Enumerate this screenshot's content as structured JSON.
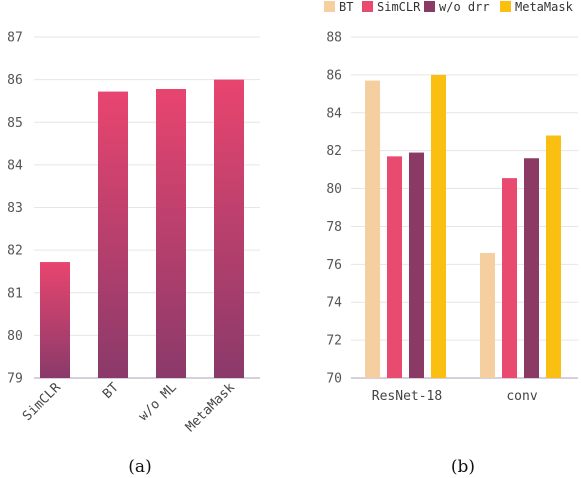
{
  "chart_data": [
    {
      "type": "bar",
      "caption": "(a)",
      "categories": [
        "SimCLR",
        "BT",
        "w/o ML",
        "MetaMask"
      ],
      "values": [
        81.72,
        85.72,
        85.78,
        86.0
      ],
      "ylim": [
        79,
        87
      ],
      "yticks": [
        79,
        80,
        81,
        82,
        83,
        84,
        85,
        86,
        87
      ],
      "grid": true,
      "legend": "none",
      "bar_gradient": {
        "top": "#e8456f",
        "bottom": "#8a3a6a"
      }
    },
    {
      "type": "bar",
      "caption": "(b)",
      "categories": [
        "ResNet-18",
        "conv"
      ],
      "series": [
        {
          "name": "BT",
          "color": "#f5cfa0",
          "values": [
            85.7,
            76.6
          ]
        },
        {
          "name": "SimCLR",
          "color": "#e84a70",
          "values": [
            81.7,
            80.55
          ]
        },
        {
          "name": "w/o drr",
          "color": "#8b3a66",
          "values": [
            81.9,
            81.6
          ]
        },
        {
          "name": "MetaMask",
          "color": "#fbbf12",
          "values": [
            86.0,
            82.8
          ]
        }
      ],
      "ylim": [
        70,
        88
      ],
      "yticks": [
        70,
        72,
        74,
        76,
        78,
        80,
        82,
        84,
        86,
        88
      ],
      "grid": true,
      "legend": "top"
    }
  ]
}
